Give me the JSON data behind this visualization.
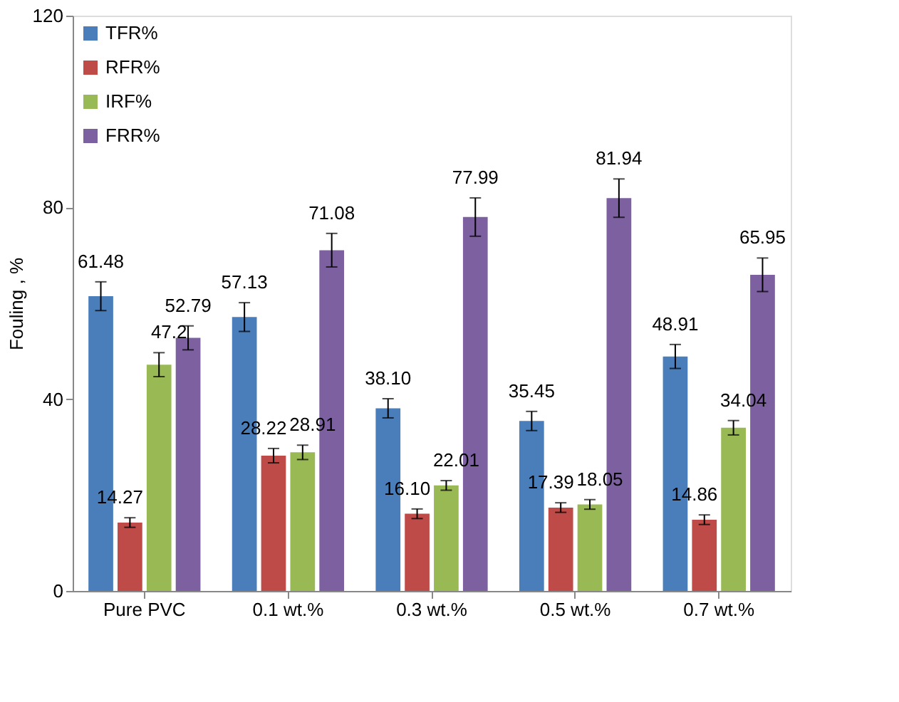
{
  "chart_data": {
    "type": "bar",
    "ylabel": "Fouling , %",
    "categories": [
      "Pure PVC",
      "0.1 wt.%",
      "0.3 wt.%",
      "0.5 wt.%",
      "0.7 wt.%"
    ],
    "series": [
      {
        "name": "TFR%",
        "color": "#4a7ebb",
        "values": [
          61.48,
          57.13,
          38.1,
          35.45,
          48.91
        ],
        "errors": [
          3,
          3,
          2,
          2,
          2.5
        ],
        "value_labels": [
          "61.48",
          "57.13",
          "38.10",
          "35.45",
          "48.91"
        ]
      },
      {
        "name": "RFR%",
        "color": "#be4b48",
        "values": [
          14.27,
          28.22,
          16.1,
          17.39,
          14.86
        ],
        "errors": [
          1,
          1.5,
          1,
          1,
          1
        ],
        "value_labels": [
          "14.27",
          "28.22",
          "16.10",
          "17.39",
          "14.86"
        ]
      },
      {
        "name": "IRF%",
        "color": "#98b954",
        "values": [
          47.2,
          28.91,
          22.01,
          18.05,
          34.04
        ],
        "errors": [
          2.5,
          1.5,
          1,
          1,
          1.5
        ],
        "value_labels": [
          "47.2",
          "28.91",
          "22.01",
          "18.05",
          "34.04"
        ]
      },
      {
        "name": "FRR%",
        "color": "#7d60a0",
        "values": [
          52.79,
          71.08,
          77.99,
          81.94,
          65.95
        ],
        "errors": [
          2.5,
          3.5,
          4,
          4,
          3.5
        ],
        "value_labels": [
          "52.79",
          "71.08",
          "77.99",
          "81.94",
          "65.95"
        ]
      }
    ],
    "ylim": [
      0,
      120
    ],
    "yticks": [
      0,
      40,
      80,
      120
    ],
    "grid": false,
    "legend": "top left"
  }
}
